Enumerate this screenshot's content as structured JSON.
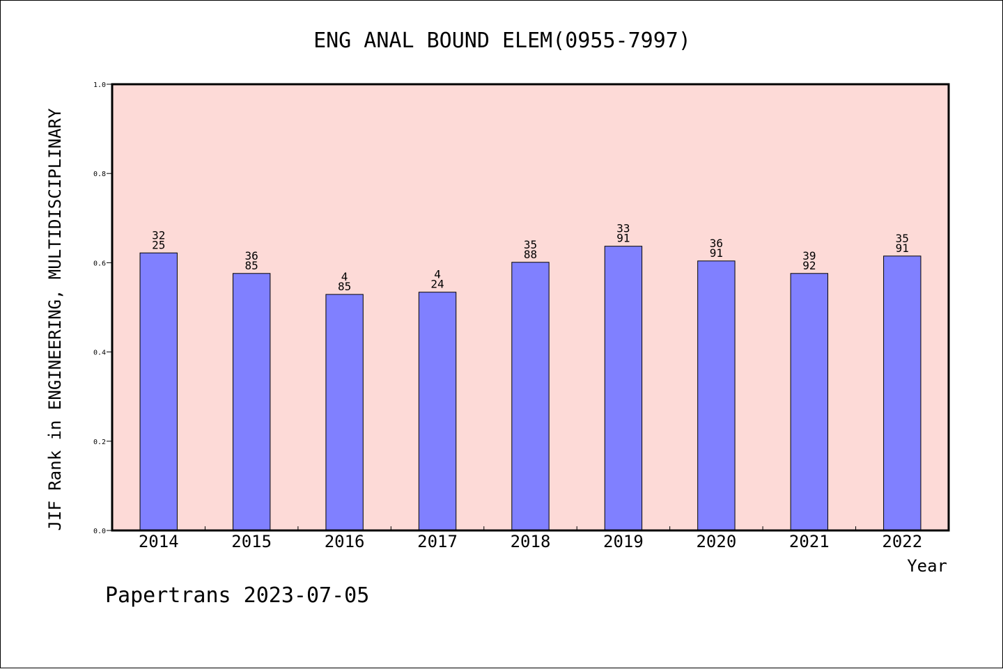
{
  "chart_data": {
    "type": "bar",
    "title": "ENG ANAL BOUND ELEM(0955-7997)",
    "xlabel": "Year",
    "ylabel": "JIF Rank in ENGINEERING, MULTIDISCIPLINARY",
    "ylim": [
      0.0,
      1.0
    ],
    "yticks": [
      "0.0",
      "0.2",
      "0.4",
      "0.6",
      "0.8",
      "1.0"
    ],
    "categories": [
      "2014",
      "2015",
      "2016",
      "2017",
      "2018",
      "2019",
      "2020",
      "2021",
      "2022"
    ],
    "values": [
      0.622,
      0.576,
      0.529,
      0.534,
      0.601,
      0.637,
      0.604,
      0.576,
      0.615
    ],
    "labels_top": [
      "32",
      "36",
      "4",
      "4",
      "35",
      "33",
      "36",
      "39",
      "35"
    ],
    "labels_bottom": [
      "25",
      "85",
      "85",
      "24",
      "88",
      "91",
      "91",
      "92",
      "91"
    ],
    "grid": false,
    "plot_background": "#fddad7",
    "bar_color": "#8080ff"
  },
  "footer": "Papertrans 2023-07-05"
}
